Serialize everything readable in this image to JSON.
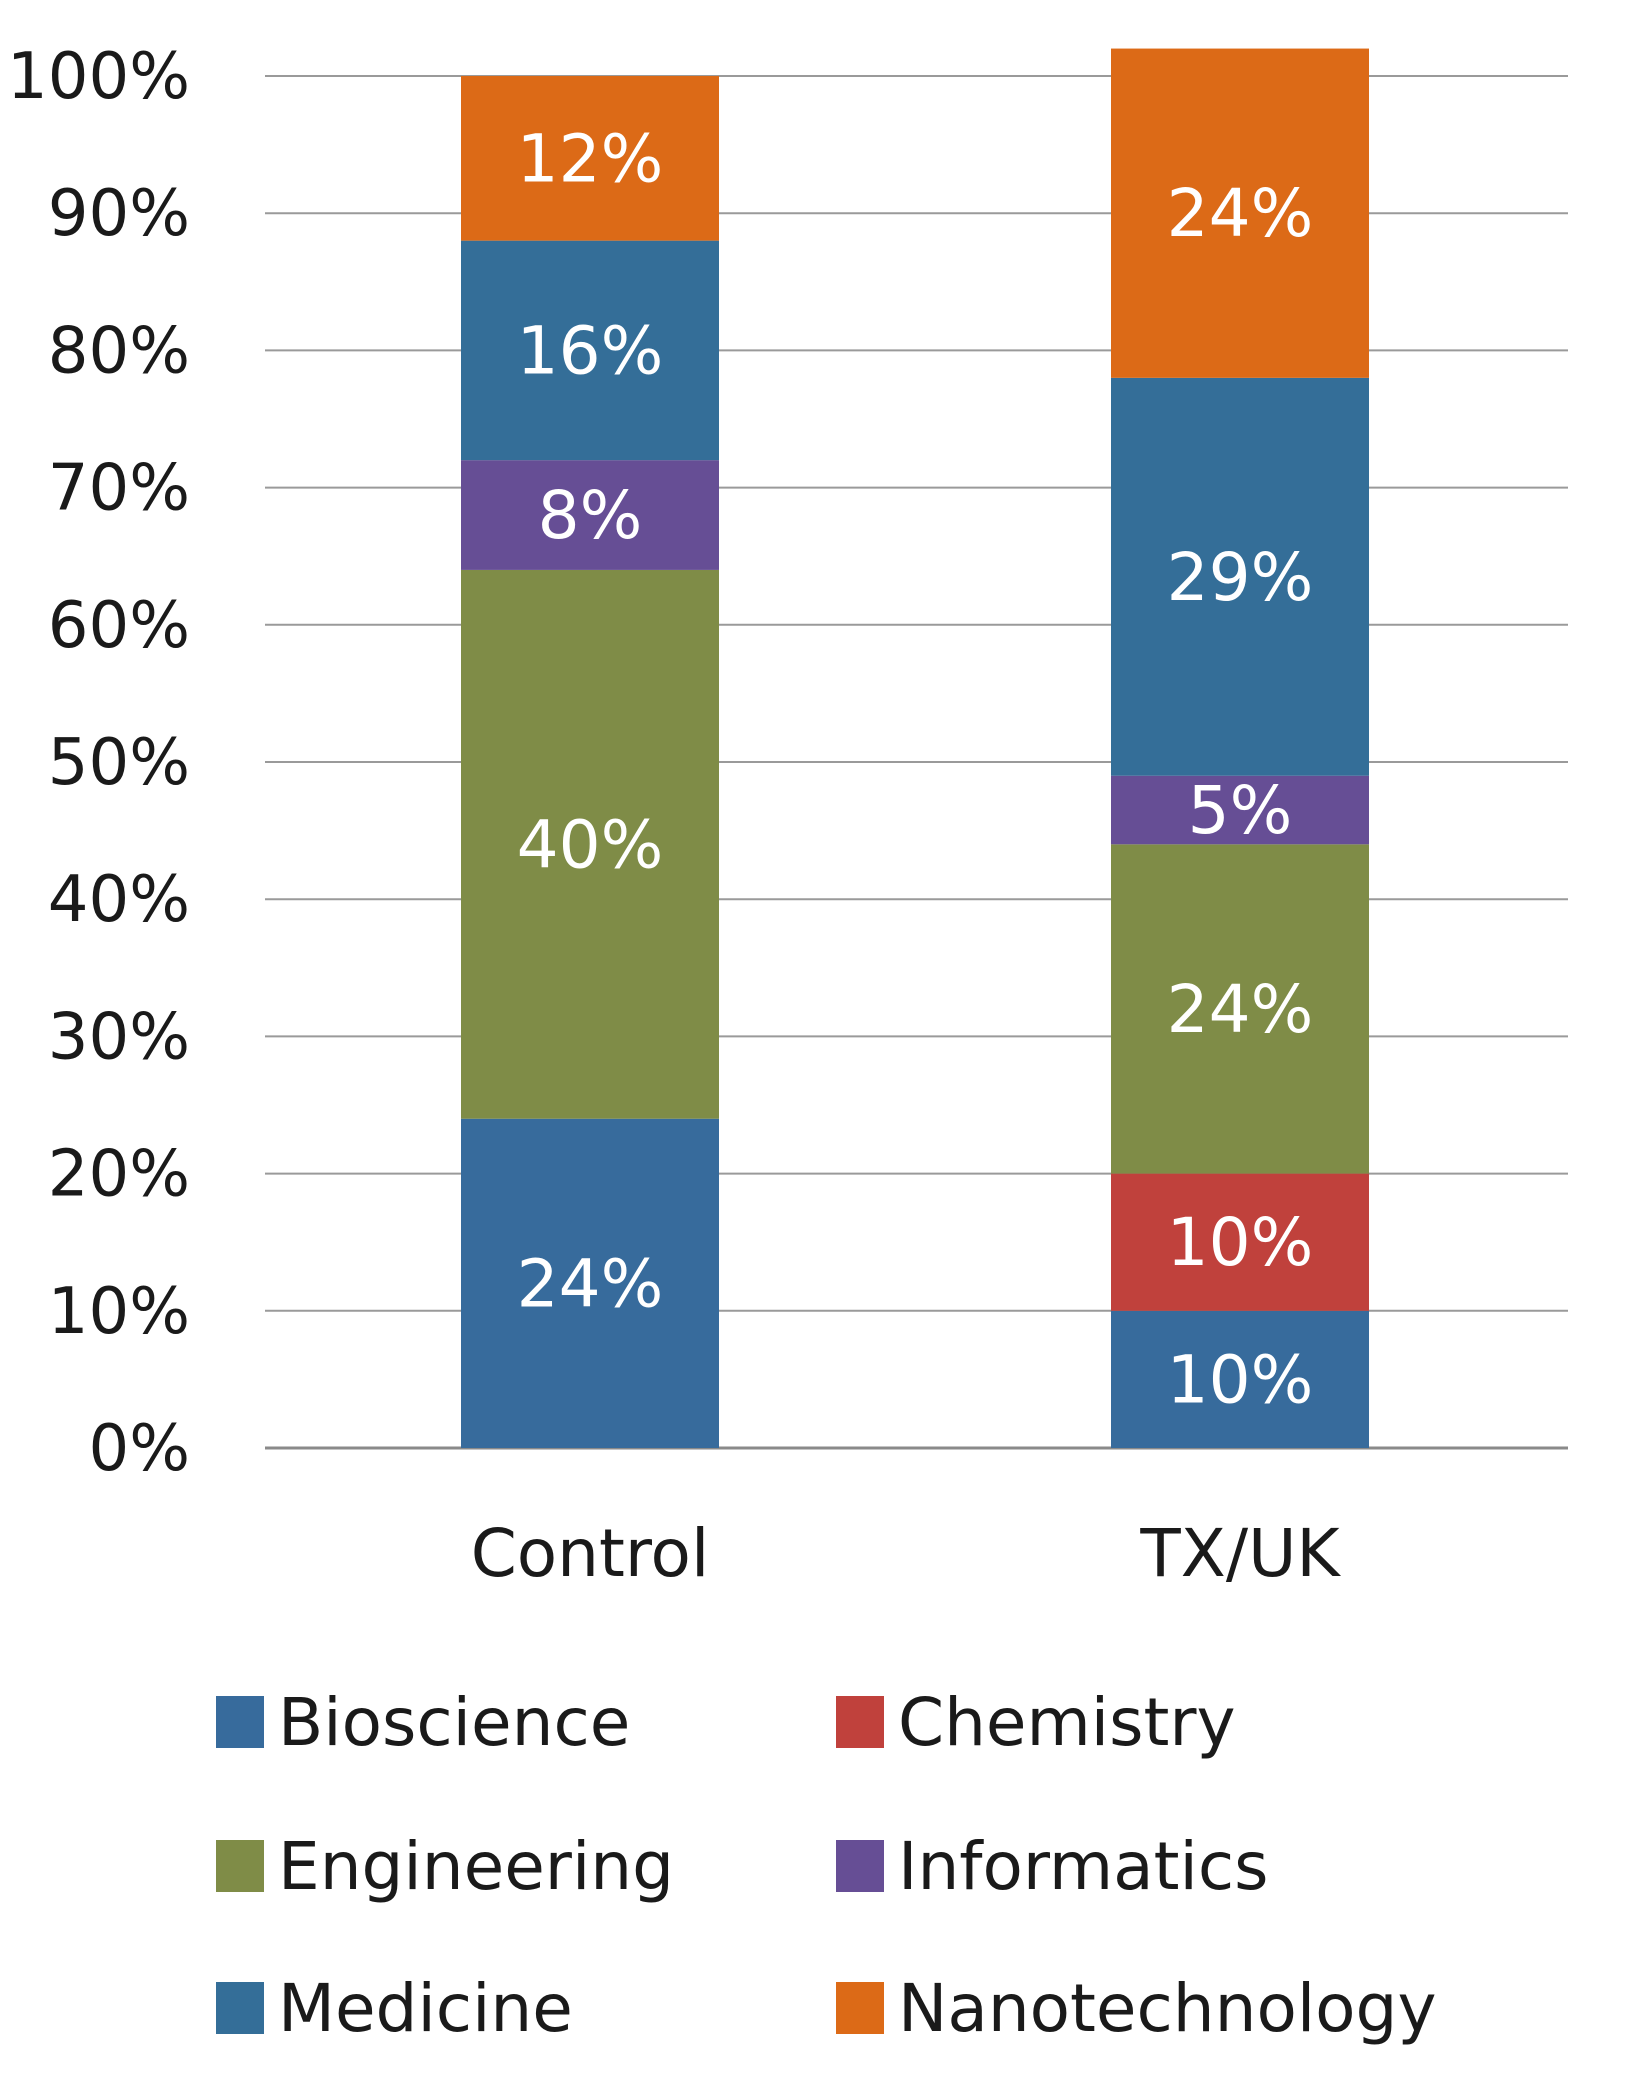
{
  "chart_data": {
    "type": "bar",
    "stacked": true,
    "categories": [
      "Control",
      "TX/UK"
    ],
    "series": [
      {
        "name": "Bioscience",
        "color": "#376b9c",
        "values": [
          24,
          10
        ],
        "labels": [
          "24%",
          "10%"
        ]
      },
      {
        "name": "Chemistry",
        "color": "#c0413c",
        "values": [
          0,
          10
        ],
        "labels": [
          "",
          "10%"
        ]
      },
      {
        "name": "Engineering",
        "color": "#7f8c47",
        "values": [
          40,
          24
        ],
        "labels": [
          "40%",
          "24%"
        ]
      },
      {
        "name": "Informatics",
        "color": "#664e95",
        "values": [
          8,
          5
        ],
        "labels": [
          "8%",
          "5%"
        ]
      },
      {
        "name": "Medicine",
        "color": "#346e98",
        "values": [
          16,
          29
        ],
        "labels": [
          "16%",
          "29%"
        ]
      },
      {
        "name": "Nanotechnology",
        "color": "#dc6a17",
        "values": [
          12,
          24
        ],
        "labels": [
          "12%",
          "24%"
        ]
      }
    ],
    "ylim": [
      0,
      100
    ],
    "yticks": [
      "0%",
      "10%",
      "20%",
      "30%",
      "40%",
      "50%",
      "60%",
      "70%",
      "80%",
      "90%",
      "100%"
    ],
    "grid": true,
    "legend_position": "bottom",
    "title": "",
    "xlabel": "",
    "ylabel": ""
  }
}
